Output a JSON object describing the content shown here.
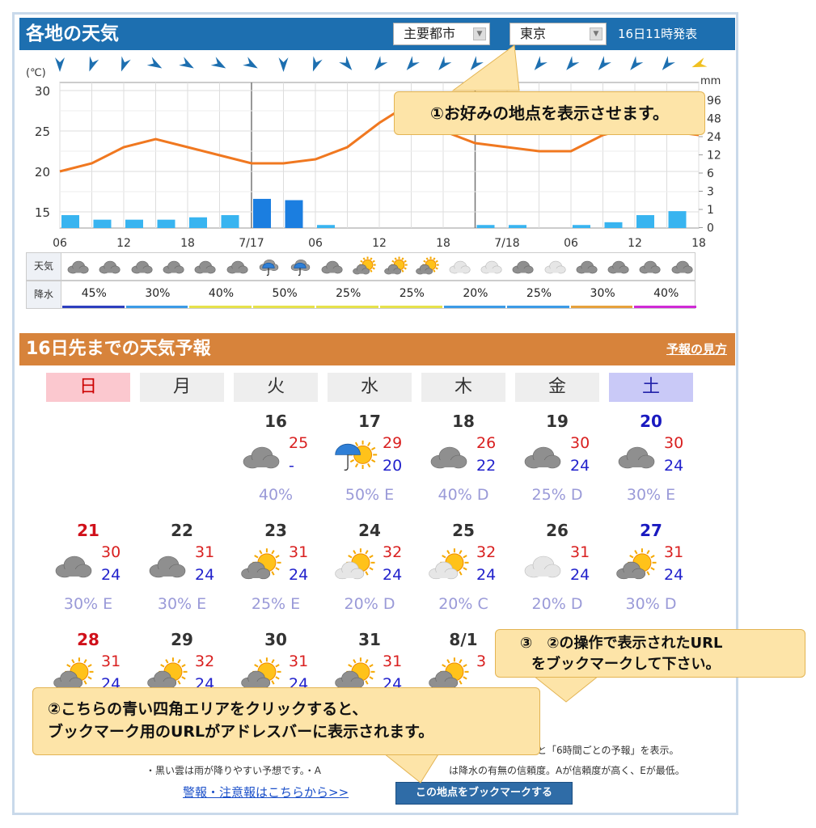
{
  "header": {
    "title": "各地の天気",
    "region_select": "主要都市",
    "city_select": "東京",
    "issued": "16日11時発表"
  },
  "chart": {
    "temp_unit": "(℃)",
    "precip_unit": "mm",
    "y_left_ticks": [
      "30",
      "25",
      "20",
      "15"
    ],
    "y_right_ticks": [
      "96",
      "48",
      "24",
      "12",
      "6",
      "3",
      "1",
      "0"
    ],
    "x_ticks": [
      "06",
      "12",
      "18",
      "7/17",
      "06",
      "12",
      "18",
      "7/18",
      "06",
      "12",
      "18"
    ]
  },
  "chart_data": {
    "type": "line",
    "x": [
      "06",
      "09",
      "12",
      "15",
      "18",
      "21",
      "7/17 00",
      "03",
      "06",
      "09",
      "12",
      "15",
      "18",
      "21",
      "7/18 00",
      "03",
      "06",
      "09",
      "12",
      "15",
      "18"
    ],
    "series": [
      {
        "values": [
          20,
          21,
          23,
          24,
          23,
          22,
          21,
          21,
          21.5,
          23,
          26,
          28.5,
          25,
          23.5,
          23,
          22.5,
          22.5,
          24.5,
          25.5,
          25,
          24.5
        ]
      }
    ],
    "precip_mm": [
      0.5,
      0.3,
      0.3,
      0.3,
      0.4,
      0.5,
      1.5,
      1.4,
      0.1,
      0,
      0,
      0,
      0,
      0.1,
      0.1,
      0,
      0.1,
      0.2,
      0.5,
      0.7,
      0
    ],
    "ylim": [
      13,
      31
    ],
    "ylabel": "(℃)"
  },
  "strip": {
    "weather_label": "天気",
    "precip_label": "降水",
    "icons": [
      "cloud",
      "cloud",
      "cloud",
      "cloud",
      "cloud",
      "cloud",
      "rain-umbrella",
      "rain-umbrella",
      "cloud",
      "sun-cloud",
      "sun-cloud",
      "sun-cloud",
      "light-cloud",
      "light-cloud",
      "cloud",
      "light-cloud",
      "cloud",
      "cloud",
      "cloud",
      "cloud"
    ],
    "precip": [
      "45%",
      "30%",
      "40%",
      "50%",
      "25%",
      "25%",
      "20%",
      "25%",
      "30%",
      "40%"
    ],
    "bar_colors": [
      "#2d3fbf",
      "#3c9be6",
      "#e6e24a",
      "#e6e24a",
      "#e6e24a",
      "#e6e24a",
      "#3c9be6",
      "#3c9be6",
      "#e6a13c",
      "#d02ad6"
    ]
  },
  "forecast": {
    "title": "16日先までの天気予報",
    "help_link": "予報の見方",
    "dow": [
      "日",
      "月",
      "火",
      "水",
      "木",
      "金",
      "土"
    ],
    "days": [
      {
        "d": "16",
        "hi": "25",
        "lo": "-",
        "pp": "40%",
        "icon": "cloud",
        "col": 2,
        "row": 0
      },
      {
        "d": "17",
        "hi": "29",
        "lo": "20",
        "pp": "50% E",
        "icon": "sun-umbrella",
        "col": 3,
        "row": 0
      },
      {
        "d": "18",
        "hi": "26",
        "lo": "22",
        "pp": "40% D",
        "icon": "cloud",
        "col": 4,
        "row": 0
      },
      {
        "d": "19",
        "hi": "30",
        "lo": "24",
        "pp": "25% D",
        "icon": "cloud",
        "col": 5,
        "row": 0
      },
      {
        "d": "20",
        "hi": "30",
        "lo": "24",
        "pp": "30% E",
        "icon": "cloud",
        "col": 6,
        "row": 0
      },
      {
        "d": "21",
        "hi": "30",
        "lo": "24",
        "pp": "30% E",
        "icon": "cloud",
        "col": 0,
        "row": 1
      },
      {
        "d": "22",
        "hi": "31",
        "lo": "24",
        "pp": "30% E",
        "icon": "cloud",
        "col": 1,
        "row": 1
      },
      {
        "d": "23",
        "hi": "31",
        "lo": "24",
        "pp": "25% E",
        "icon": "sun-cloud",
        "col": 2,
        "row": 1
      },
      {
        "d": "24",
        "hi": "32",
        "lo": "24",
        "pp": "20% D",
        "icon": "sun-cloud-light",
        "col": 3,
        "row": 1
      },
      {
        "d": "25",
        "hi": "32",
        "lo": "24",
        "pp": "20% C",
        "icon": "sun-cloud-light",
        "col": 4,
        "row": 1
      },
      {
        "d": "26",
        "hi": "31",
        "lo": "24",
        "pp": "20% D",
        "icon": "light-cloud",
        "col": 5,
        "row": 1
      },
      {
        "d": "27",
        "hi": "31",
        "lo": "24",
        "pp": "30% D",
        "icon": "sun-cloud",
        "col": 6,
        "row": 1
      },
      {
        "d": "28",
        "hi": "31",
        "lo": "24",
        "pp": "",
        "icon": "sun-cloud",
        "col": 0,
        "row": 2
      },
      {
        "d": "29",
        "hi": "32",
        "lo": "24",
        "pp": "",
        "icon": "sun-cloud",
        "col": 1,
        "row": 2
      },
      {
        "d": "30",
        "hi": "31",
        "lo": "24",
        "pp": "",
        "icon": "sun-cloud",
        "col": 2,
        "row": 2
      },
      {
        "d": "31",
        "hi": "31",
        "lo": "24",
        "pp": "",
        "icon": "sun-cloud",
        "col": 3,
        "row": 2
      },
      {
        "d": "8/1",
        "hi": "3",
        "lo": "",
        "pp": "",
        "icon": "sun-cloud",
        "col": 4,
        "row": 2
      }
    ],
    "note1": "ると「6時間ごとの予報」を表示。",
    "note2": "・黒い雲は雨が降りやすい予想です。・A",
    "note3": "は降水の有無の信頼度。Aが信頼度が高く、Eが最低。",
    "warning_link": "警報・注意報はこちらから>>",
    "bookmark_button": "この地点をブックマークする"
  },
  "callouts": {
    "c1": "①お好みの地点を表示させます。",
    "c2_line1": "②こちらの青い四角エリアをクリックすると、",
    "c2_line2": "ブックマーク用のURLがアドレスバーに表示されます。",
    "c3_line1": "③　②の操作で表示されたURL",
    "c3_line2": "をブックマークして下さい。"
  },
  "colors": {
    "blue_header": "#1d6fb0",
    "orange_header": "#d7833b",
    "temp_line": "#f07820",
    "precip_bar": "#2b9de6"
  }
}
